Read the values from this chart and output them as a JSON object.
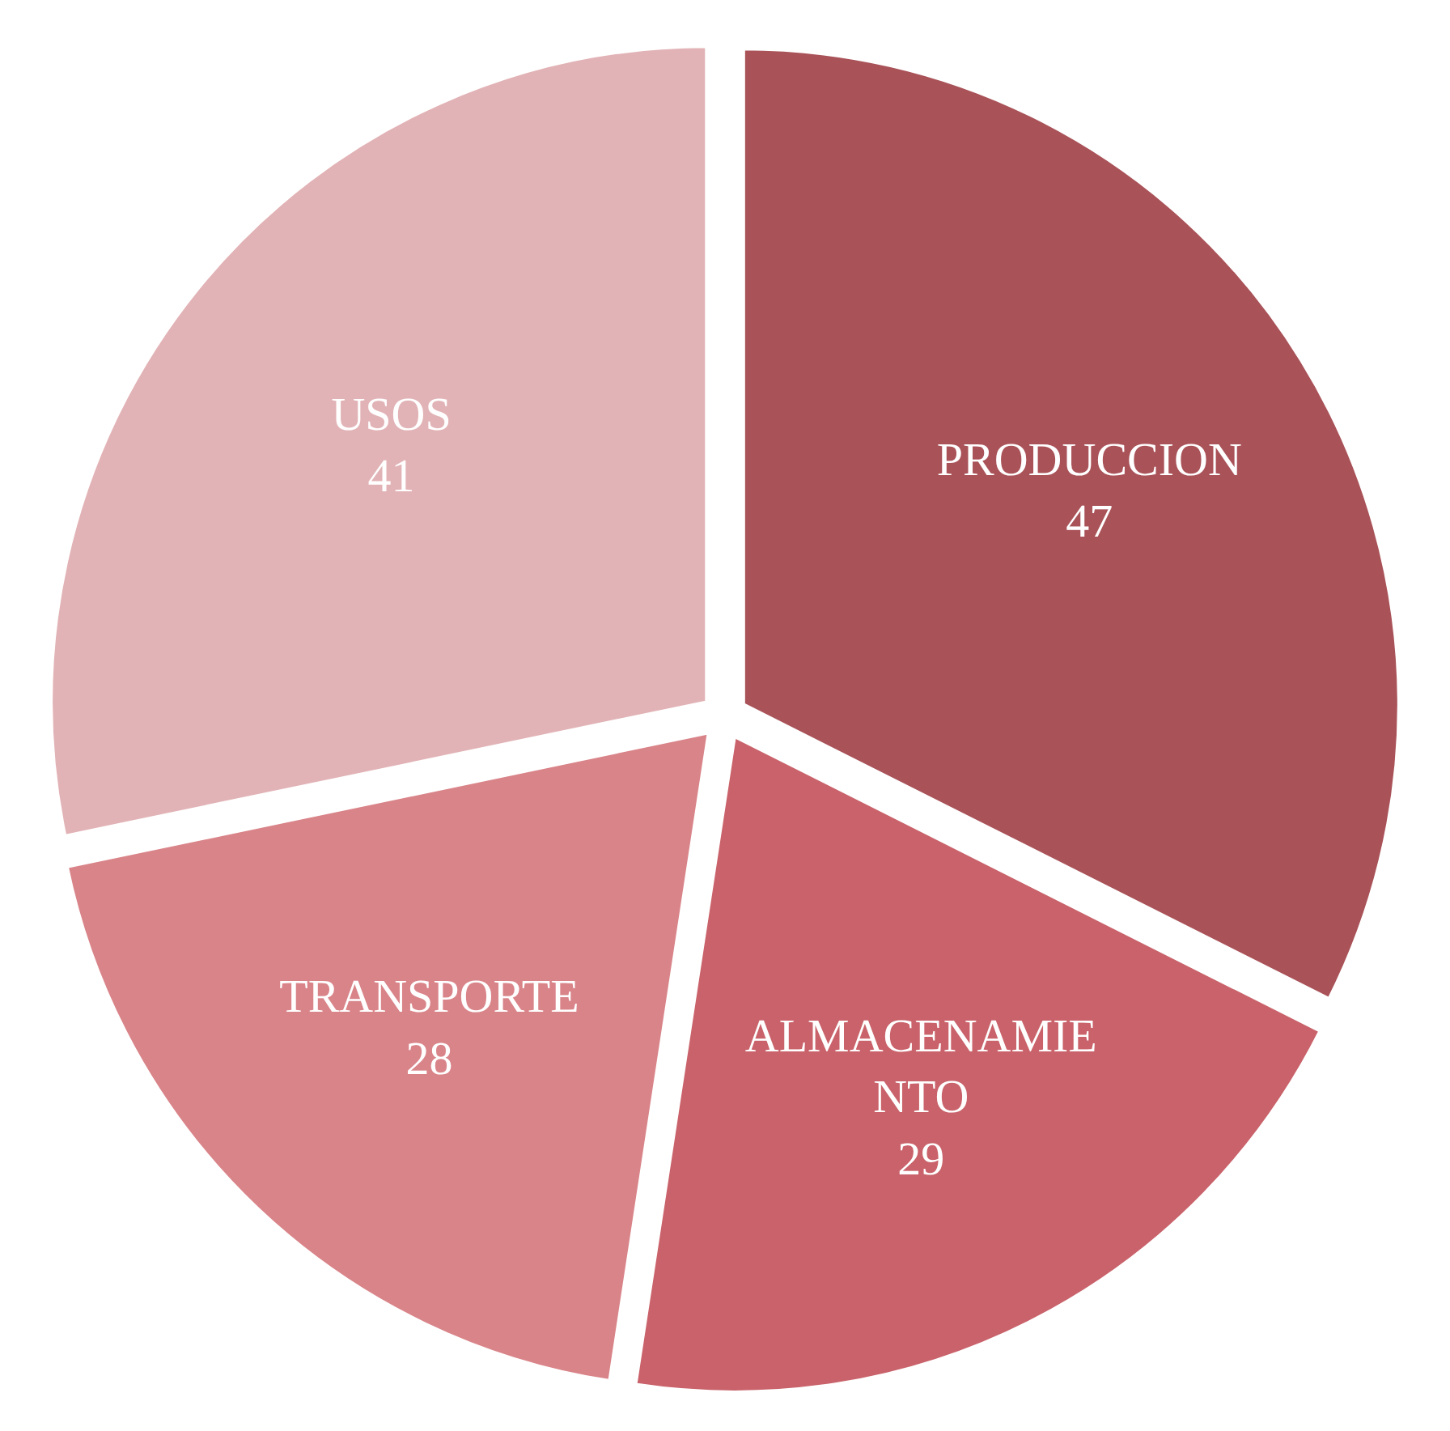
{
  "chart_data": {
    "type": "pie",
    "categories": [
      "PRODUCCION",
      "ALMACENAMIENTO",
      "TRANSPORTE",
      "USOS"
    ],
    "values": [
      47,
      29,
      28,
      41
    ],
    "colors": [
      "#a95258",
      "#c9626a",
      "#d98489",
      "#e2b3b6"
    ],
    "data_labels": true
  }
}
